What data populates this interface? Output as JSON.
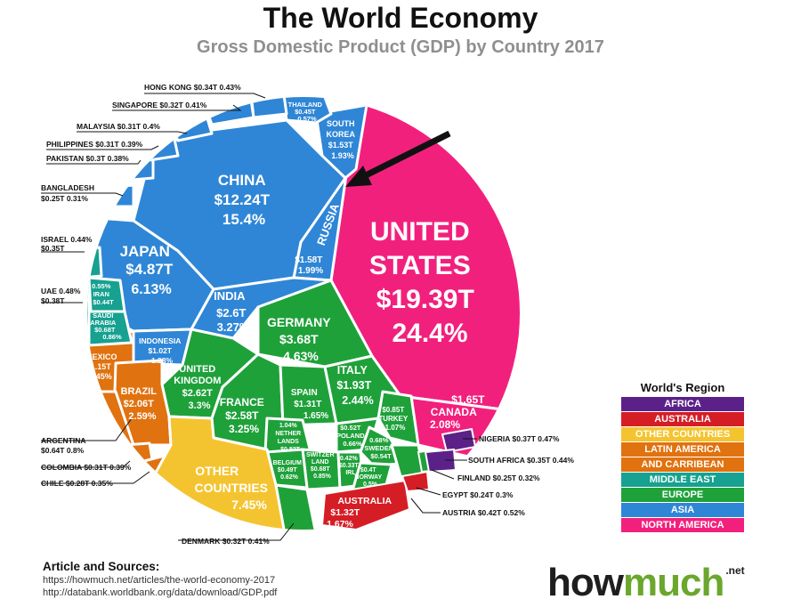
{
  "header": {
    "title": "The World Economy",
    "subtitle": "Gross Domestic Product (GDP) by Country 2017"
  },
  "colors": {
    "north_america": "#f2207d",
    "asia": "#2f86d6",
    "europe": "#1fa13a",
    "middle_east": "#16a190",
    "latin_america": "#e0720f",
    "other": "#f4c430",
    "australia": "#d51d25",
    "africa": "#5b2189"
  },
  "cells": {
    "united_states": [
      "UNITED",
      "STATES",
      "$19.39T",
      "24.4%"
    ],
    "china": [
      "CHINA",
      "$12.24T",
      "15.4%"
    ],
    "japan": [
      "JAPAN",
      "$4.87T",
      "6.13%"
    ],
    "india": [
      "INDIA",
      "$2.6T",
      "3.27%"
    ],
    "russia_name": "RUSSIA",
    "russia_values": [
      "$1.58T",
      "1.99%"
    ],
    "south_korea": [
      "SOUTH",
      "KOREA",
      "$1.53T",
      "1.93%"
    ],
    "thailand": [
      "THAILAND",
      "$0.45T",
      "0.57%"
    ],
    "indonesia": [
      "INDONESIA",
      "$1.02T",
      "1.28%"
    ],
    "germany": [
      "GERMANY",
      "$3.68T",
      "4.63%"
    ],
    "united_kingdom": [
      "UNITED",
      "KINGDOM",
      "$2.62T",
      "3.3%"
    ],
    "france": [
      "FRANCE",
      "$2.58T",
      "3.25%"
    ],
    "italy": [
      "ITALY",
      "$1.93T",
      "2.44%"
    ],
    "spain": [
      "SPAIN",
      "$1.31T",
      "1.65%"
    ],
    "netherlands": [
      "1.04%",
      "NETHER",
      "LANDS",
      "$0.83T"
    ],
    "belgium": [
      "BELGIUM",
      "$0.49T",
      "0.62%"
    ],
    "switzerland": [
      "SWITZER",
      "LAND",
      "$0.68T",
      "0.85%"
    ],
    "poland": [
      "$0.52T",
      "POLAND",
      "0.66%"
    ],
    "sweden": [
      "0.68%",
      "SWEDEN",
      "$0.54T"
    ],
    "turkey": [
      "$0.85T",
      "TURKEY",
      "1.07%"
    ],
    "ireland": [
      "0.42%",
      "$0.33T",
      "IRL"
    ],
    "norway": [
      "$0.4T",
      "NORWAY",
      "0.5%"
    ],
    "canada": [
      "$1.65T",
      "CANADA",
      "2.08%"
    ],
    "mexico": [
      "MEXICO",
      "$1.15T",
      "1.45%"
    ],
    "brazil": [
      "BRAZIL",
      "$2.06T",
      "2.59%"
    ],
    "iran": [
      "0.55%",
      "IRAN",
      "$0.44T"
    ],
    "saudi_arabia": [
      "SAUDI",
      "ARABIA",
      "$0.68T",
      "0.86%"
    ],
    "other_countries": [
      "OTHER",
      "COUNTRIES",
      "7.45%"
    ],
    "australia": [
      "AUSTRALIA",
      "$1.32T",
      "1.67%"
    ]
  },
  "labels": {
    "hong_kong": "HONG KONG $0.34T 0.43%",
    "singapore": "SINGAPORE $0.32T 0.41%",
    "malaysia": "MALAYSIA $0.31T  0.4%",
    "philippines": "PHILIPPINES $0.31T 0.39%",
    "pakistan": "PAKISTAN $0.3T 0.38%",
    "bangladesh_1": "BANGLADESH",
    "bangladesh_2": "$0.25T 0.31%",
    "israel_1": "ISRAEL 0.44%",
    "israel_2": "$0.35T",
    "uae_1": "UAE 0.48%",
    "uae_2": "$0.38T",
    "argentina_1": "ARGENTINA",
    "argentina_2": "$0.64T 0.8%",
    "colombia": "COLOMBIA $0.31T 0.39%",
    "chile": "CHILE $0.28T 0.35%",
    "denmark": "DENMARK $0.32T 0.41%",
    "nigeria": "NIGERIA $0.37T 0.47%",
    "south_africa": "SOUTH AFRICA $0.35T 0.44%",
    "finland": "FINLAND $0.25T 0.32%",
    "egypt": "EGYPT $0.24T  0.3%",
    "austria": "AUSTRIA $0.42T  0.52%"
  },
  "legend": {
    "title": "World's Region",
    "items": [
      {
        "label": "AFRICA",
        "color": "#5b2189"
      },
      {
        "label": "AUSTRALIA",
        "color": "#d51d25"
      },
      {
        "label": "OTHER COUNTRIES",
        "color": "#f4c430"
      },
      {
        "label": "LATIN AMERICA",
        "color": "#e0720f"
      },
      {
        "label": "AND CARRIBEAN",
        "color": "#e0720f"
      },
      {
        "label": "MIDDLE EAST",
        "color": "#16a190"
      },
      {
        "label": "EUROPE",
        "color": "#1fa13a"
      },
      {
        "label": "ASIA",
        "color": "#2f86d6"
      },
      {
        "label": "NORTH AMERICA",
        "color": "#f2207d"
      }
    ]
  },
  "sources": {
    "heading": "Article and Sources:",
    "line1": "https://howmuch.net/articles/the-world-economy-2017",
    "line2": "http://databank.worldbank.org/data/download/GDP.pdf"
  },
  "brand": {
    "how": "how",
    "much": "much",
    "net": ".net"
  }
}
